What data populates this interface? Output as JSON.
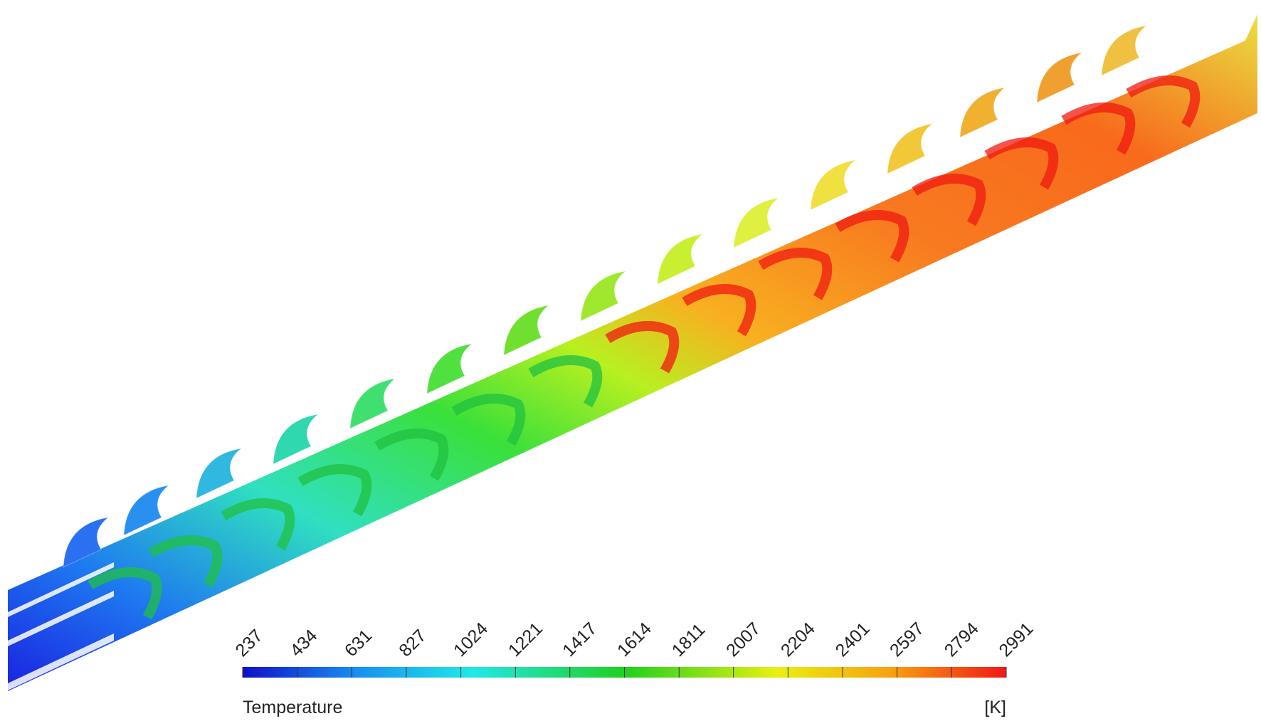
{
  "colorbar": {
    "ticks": [
      237,
      434,
      631,
      827,
      1024,
      1221,
      1417,
      1614,
      1811,
      2007,
      2204,
      2401,
      2597,
      2794,
      2991
    ],
    "label": "Temperature",
    "unit": "[K]"
  }
}
